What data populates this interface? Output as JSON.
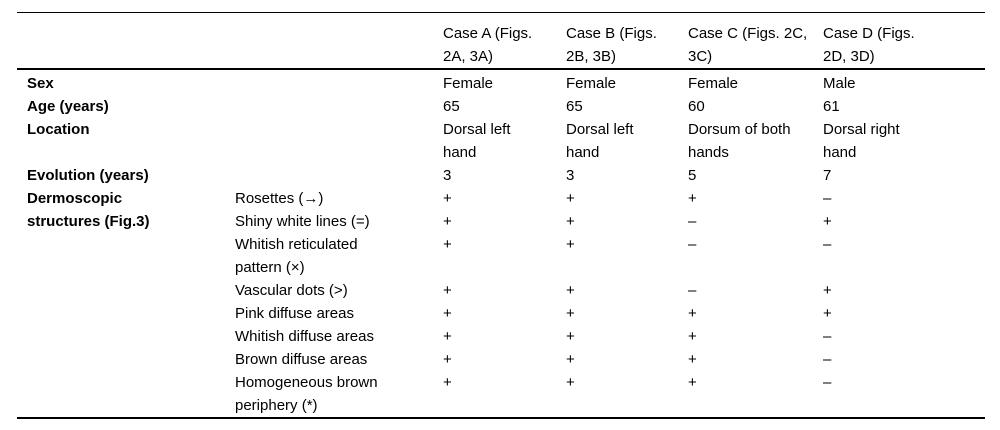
{
  "table": {
    "header": {
      "cases": [
        {
          "lines": [
            "Case A (Figs.",
            "2A, 3A)"
          ]
        },
        {
          "lines": [
            "Case B (Figs.",
            "2B, 3B)"
          ]
        },
        {
          "lines": [
            "Case C (Figs. 2C,",
            "3C)"
          ]
        },
        {
          "lines": [
            "Case D (Figs.",
            "2D, 3D)"
          ]
        }
      ]
    },
    "top_rows": [
      {
        "label": "Sex",
        "values": [
          [
            "Female"
          ],
          [
            "Female"
          ],
          [
            "Female"
          ],
          [
            "Male"
          ]
        ]
      },
      {
        "label": "Age (years)",
        "values": [
          [
            "65"
          ],
          [
            "65"
          ],
          [
            "60"
          ],
          [
            "61"
          ]
        ]
      },
      {
        "label": "Location",
        "values": [
          [
            "Dorsal left",
            "hand"
          ],
          [
            "Dorsal left",
            "hand"
          ],
          [
            "Dorsum of both",
            "hands"
          ],
          [
            "Dorsal right",
            "hand"
          ]
        ]
      },
      {
        "label": "Evolution (years)",
        "values": [
          [
            "3"
          ],
          [
            "3"
          ],
          [
            "5"
          ],
          [
            "7"
          ]
        ]
      }
    ],
    "section": {
      "label_lines": [
        "Dermoscopic",
        "structures (Fig.3)"
      ],
      "sub_rows": [
        {
          "label_lines": [
            "Rosettes (→)"
          ],
          "values": [
            "+",
            "+",
            "+",
            "–"
          ]
        },
        {
          "label_lines": [
            "Shiny white lines (=)"
          ],
          "values": [
            "+",
            "+",
            "–",
            "+"
          ]
        },
        {
          "label_lines": [
            "Whitish reticulated",
            "pattern (×)"
          ],
          "values": [
            "+",
            "+",
            "–",
            "–"
          ]
        },
        {
          "label_lines": [
            "Vascular dots (>)"
          ],
          "values": [
            "+",
            "+",
            "–",
            "+"
          ]
        },
        {
          "label_lines": [
            "Pink diffuse areas"
          ],
          "values": [
            "+",
            "+",
            "+",
            "+"
          ]
        },
        {
          "label_lines": [
            "Whitish diffuse areas"
          ],
          "values": [
            "+",
            "+",
            "+",
            "–"
          ]
        },
        {
          "label_lines": [
            "Brown diffuse areas"
          ],
          "values": [
            "+",
            "+",
            "+",
            "–"
          ]
        },
        {
          "label_lines": [
            "Homogeneous brown",
            "periphery (*)"
          ],
          "values": [
            "+",
            "+",
            "+",
            "–"
          ]
        }
      ]
    },
    "colors": {
      "text": "#000000",
      "rule": "#000000",
      "background": "#ffffff"
    }
  }
}
